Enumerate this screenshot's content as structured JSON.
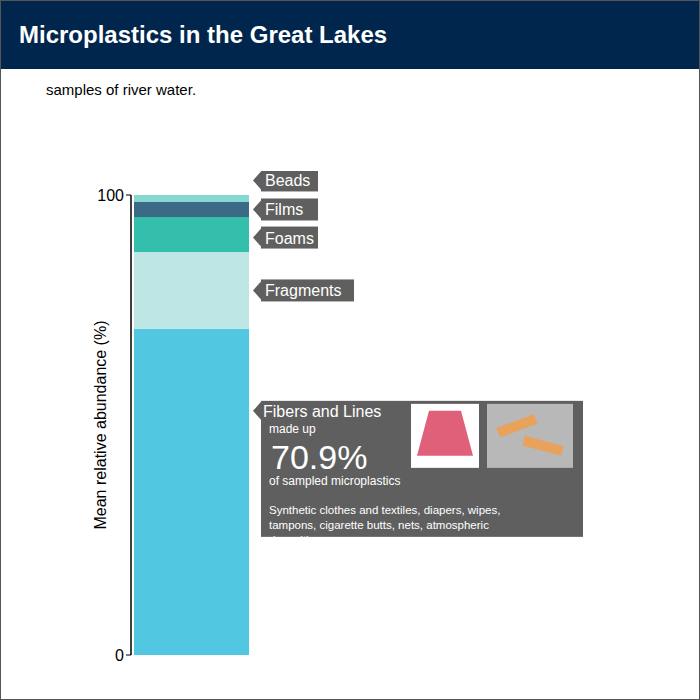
{
  "chart_data": {
    "type": "bar",
    "stacked": true,
    "title": "Microplastics in the Great Lakes",
    "subtitle": "samples of river water.",
    "y_label": "Mean relative abundance (%)",
    "categories": [
      null
    ],
    "ylim": [
      0,
      100
    ],
    "yticks": [
      0,
      100
    ],
    "tick_labels": "y",
    "series": [
      {
        "name": "Fibers and Lines",
        "color": "#52c7e1",
        "values": [
          70.9
        ],
        "value_labels": [
          "70.9%"
        ]
      },
      {
        "name": "Fragments",
        "color": "#bde6e4",
        "values": [
          16.7
        ]
      },
      {
        "name": "Foams",
        "color": "#34bfac",
        "values": [
          7.6
        ]
      },
      {
        "name": "Films",
        "color": "#3b6a86",
        "values": [
          3.3
        ]
      },
      {
        "name": "Beads",
        "color": "#86d6d2",
        "values": [
          1.5
        ]
      }
    ],
    "annotation": {
      "before": "made up",
      "after": "of sampled microplastics",
      "note": "Synthetic clothes and textiles, diapers, wipes, tampons, cigarette butts, nets, atmospheric deposition"
    }
  }
}
